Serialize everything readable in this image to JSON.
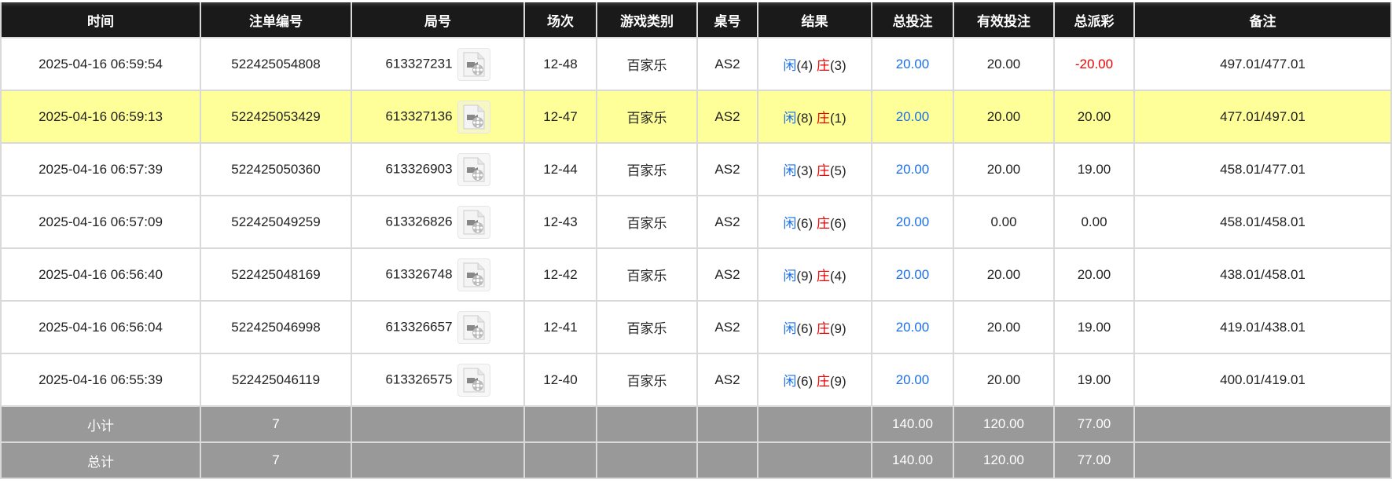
{
  "headers": [
    "时间",
    "注单编号",
    "局号",
    "场次",
    "游戏类别",
    "桌号",
    "结果",
    "总投注",
    "有效投注",
    "总派彩",
    "备注"
  ],
  "rows": [
    {
      "time": "2025-04-16 06:59:54",
      "bet_id": "522425054808",
      "round": "613327231",
      "session": "12-48",
      "game": "百家乐",
      "table": "AS2",
      "player_label": "闲",
      "player": "(4)",
      "banker_label": "庄",
      "banker": "(3)",
      "total_bet": "20.00",
      "valid_bet": "20.00",
      "payout": "-20.00",
      "payout_negative": true,
      "note": "497.01/477.01",
      "highlight": false
    },
    {
      "time": "2025-04-16 06:59:13",
      "bet_id": "522425053429",
      "round": "613327136",
      "session": "12-47",
      "game": "百家乐",
      "table": "AS2",
      "player_label": "闲",
      "player": "(8)",
      "banker_label": "庄",
      "banker": "(1)",
      "total_bet": "20.00",
      "valid_bet": "20.00",
      "payout": "20.00",
      "payout_negative": false,
      "note": "477.01/497.01",
      "highlight": true
    },
    {
      "time": "2025-04-16 06:57:39",
      "bet_id": "522425050360",
      "round": "613326903",
      "session": "12-44",
      "game": "百家乐",
      "table": "AS2",
      "player_label": "闲",
      "player": "(3)",
      "banker_label": "庄",
      "banker": "(5)",
      "total_bet": "20.00",
      "valid_bet": "20.00",
      "payout": "19.00",
      "payout_negative": false,
      "note": "458.01/477.01",
      "highlight": false
    },
    {
      "time": "2025-04-16 06:57:09",
      "bet_id": "522425049259",
      "round": "613326826",
      "session": "12-43",
      "game": "百家乐",
      "table": "AS2",
      "player_label": "闲",
      "player": "(6)",
      "banker_label": "庄",
      "banker": "(6)",
      "total_bet": "20.00",
      "valid_bet": "0.00",
      "payout": "0.00",
      "payout_negative": false,
      "note": "458.01/458.01",
      "highlight": false
    },
    {
      "time": "2025-04-16 06:56:40",
      "bet_id": "522425048169",
      "round": "613326748",
      "session": "12-42",
      "game": "百家乐",
      "table": "AS2",
      "player_label": "闲",
      "player": "(9)",
      "banker_label": "庄",
      "banker": "(4)",
      "total_bet": "20.00",
      "valid_bet": "20.00",
      "payout": "20.00",
      "payout_negative": false,
      "note": "438.01/458.01",
      "highlight": false
    },
    {
      "time": "2025-04-16 06:56:04",
      "bet_id": "522425046998",
      "round": "613326657",
      "session": "12-41",
      "game": "百家乐",
      "table": "AS2",
      "player_label": "闲",
      "player": "(6)",
      "banker_label": "庄",
      "banker": "(9)",
      "total_bet": "20.00",
      "valid_bet": "20.00",
      "payout": "19.00",
      "payout_negative": false,
      "note": "419.01/438.01",
      "highlight": false
    },
    {
      "time": "2025-04-16 06:55:39",
      "bet_id": "522425046119",
      "round": "613326575",
      "session": "12-40",
      "game": "百家乐",
      "table": "AS2",
      "player_label": "闲",
      "player": "(6)",
      "banker_label": "庄",
      "banker": "(9)",
      "total_bet": "20.00",
      "valid_bet": "20.00",
      "payout": "19.00",
      "payout_negative": false,
      "note": "400.01/419.01",
      "highlight": false
    }
  ],
  "subtotal": {
    "label": "小计",
    "count": "7",
    "total_bet": "140.00",
    "valid_bet": "120.00",
    "payout": "77.00"
  },
  "total": {
    "label": "总计",
    "count": "7",
    "total_bet": "140.00",
    "valid_bet": "120.00",
    "payout": "77.00"
  },
  "colors": {
    "header_bg": "#1a1a1a",
    "highlight_row": "#ffff99",
    "summary_bg": "#999999",
    "player": "#1a6fe6",
    "banker": "#ee0000"
  },
  "icons": {
    "replay": "video-file-icon"
  }
}
